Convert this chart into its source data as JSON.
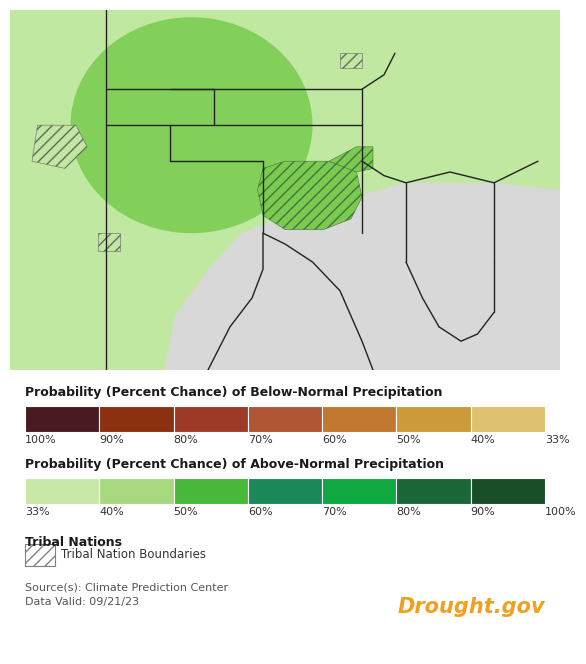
{
  "below_normal_colors": [
    "#4a1a22",
    "#8b3010",
    "#9e3a28",
    "#b05535",
    "#c07830",
    "#cc9a3a",
    "#ddc070",
    "#e8d898"
  ],
  "below_normal_labels": [
    "100%",
    "90%",
    "80%",
    "70%",
    "60%",
    "50%",
    "40%",
    "33%"
  ],
  "above_normal_colors": [
    "#c8e8a8",
    "#a8d880",
    "#48b83a",
    "#1a8858",
    "#10a840",
    "#1a6838",
    "#1a4e28",
    "#142a14"
  ],
  "above_normal_labels": [
    "33%",
    "40%",
    "50%",
    "60%",
    "70%",
    "80%",
    "90%",
    "100%"
  ],
  "section_below_title": "Probability (Percent Chance) of Below-Normal Precipitation",
  "section_above_title": "Probability (Percent Chance) of Above-Normal Precipitation",
  "tribal_title": "Tribal Nations",
  "tribal_label": "Tribal Nation Boundaries",
  "source_text": "Source(s): Climate Prediction Center",
  "date_text": "Data Valid: 09/21/23",
  "drought_gov_text": "Drought.gov",
  "drought_gov_color": "#f0a020",
  "background_color": "#ffffff",
  "light_green": "#c0e8a0",
  "medium_green": "#7acc50",
  "gray_color": "#d8d8d8",
  "hatching_color": "#508848"
}
